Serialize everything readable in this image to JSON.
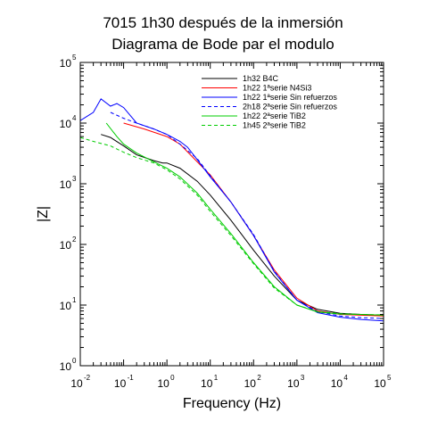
{
  "chart_data": {
    "type": "line",
    "title": [
      "7015 1h30 después de la inmersión",
      "Diagrama de Bode par el modulo"
    ],
    "xlabel": "Frequency (Hz)",
    "ylabel": "|Z|",
    "xscale": "log",
    "yscale": "log",
    "xlim": [
      0.01,
      100000
    ],
    "ylim": [
      1,
      100000
    ],
    "xticks": [
      {
        "base": "10",
        "exp": "-2"
      },
      {
        "base": "10",
        "exp": "-1"
      },
      {
        "base": "10",
        "exp": "0"
      },
      {
        "base": "10",
        "exp": "1"
      },
      {
        "base": "10",
        "exp": "2"
      },
      {
        "base": "10",
        "exp": "3"
      },
      {
        "base": "10",
        "exp": "4"
      },
      {
        "base": "10",
        "exp": "5"
      }
    ],
    "yticks": [
      {
        "base": "10",
        "exp": "0"
      },
      {
        "base": "10",
        "exp": "1"
      },
      {
        "base": "10",
        "exp": "2"
      },
      {
        "base": "10",
        "exp": "3"
      },
      {
        "base": "10",
        "exp": "4"
      },
      {
        "base": "10",
        "exp": "5"
      }
    ],
    "grid": false,
    "legend_position": "top-right",
    "series": [
      {
        "name": "1h32 B4C",
        "color": "#000000",
        "dash": "solid",
        "points": [
          [
            0.03,
            6500
          ],
          [
            0.05,
            5800
          ],
          [
            0.1,
            4200
          ],
          [
            0.2,
            3000
          ],
          [
            0.5,
            2400
          ],
          [
            0.8,
            2200
          ],
          [
            1,
            2200
          ],
          [
            2,
            1800
          ],
          [
            5,
            1100
          ],
          [
            10,
            650
          ],
          [
            30,
            250
          ],
          [
            100,
            80
          ],
          [
            300,
            30
          ],
          [
            1000,
            12
          ],
          [
            3000,
            8.5
          ],
          [
            10000,
            7.3
          ],
          [
            30000,
            7
          ],
          [
            100000,
            6.8
          ]
        ]
      },
      {
        "name": "1h22 1ªserie N4Si3",
        "color": "#ff0000",
        "dash": "solid",
        "points": [
          [
            0.1,
            10000
          ],
          [
            0.3,
            8000
          ],
          [
            1,
            6000
          ],
          [
            2,
            4500
          ],
          [
            5,
            2300
          ],
          [
            10,
            1400
          ],
          [
            30,
            500
          ],
          [
            100,
            140
          ],
          [
            300,
            38
          ],
          [
            1000,
            13
          ],
          [
            3000,
            8
          ],
          [
            10000,
            7
          ],
          [
            30000,
            6.8
          ],
          [
            100000,
            6.6
          ]
        ]
      },
      {
        "name": "1h22 1ªserie Sin refuerzos",
        "color": "#0000ff",
        "dash": "solid",
        "points": [
          [
            0.01,
            11000
          ],
          [
            0.02,
            15000
          ],
          [
            0.03,
            25000
          ],
          [
            0.05,
            19000
          ],
          [
            0.07,
            21000
          ],
          [
            0.1,
            18000
          ],
          [
            0.2,
            10000
          ],
          [
            0.5,
            8000
          ],
          [
            1,
            6500
          ],
          [
            2,
            5000
          ],
          [
            3,
            4000
          ],
          [
            5,
            2500
          ],
          [
            10,
            1300
          ],
          [
            30,
            500
          ],
          [
            100,
            140
          ],
          [
            300,
            35
          ],
          [
            1000,
            12
          ],
          [
            3000,
            7.5
          ],
          [
            10000,
            6.3
          ],
          [
            30000,
            5.8
          ],
          [
            100000,
            5.5
          ]
        ]
      },
      {
        "name": "2h18 2ªserie Sin refuerzos",
        "color": "#0000ff",
        "dash": "dashed",
        "points": [
          [
            0.05,
            15000
          ],
          [
            0.1,
            12000
          ],
          [
            0.2,
            10000
          ],
          [
            0.5,
            8000
          ],
          [
            1,
            6500
          ],
          [
            2,
            4500
          ],
          [
            5,
            2600
          ],
          [
            10,
            1350
          ],
          [
            30,
            500
          ],
          [
            100,
            145
          ],
          [
            300,
            36
          ],
          [
            1000,
            12
          ],
          [
            3000,
            7.8
          ],
          [
            10000,
            6.6
          ],
          [
            30000,
            6.2
          ],
          [
            100000,
            6
          ]
        ]
      },
      {
        "name": "1h22 2ªserie TiB2",
        "color": "#00cc00",
        "dash": "solid",
        "points": [
          [
            0.04,
            10000
          ],
          [
            0.07,
            6000
          ],
          [
            0.1,
            4500
          ],
          [
            0.2,
            3200
          ],
          [
            0.5,
            2300
          ],
          [
            1,
            1800
          ],
          [
            2,
            1300
          ],
          [
            5,
            700
          ],
          [
            10,
            380
          ],
          [
            30,
            150
          ],
          [
            100,
            50
          ],
          [
            300,
            20
          ],
          [
            1000,
            10
          ],
          [
            3000,
            7.7
          ],
          [
            10000,
            7.1
          ],
          [
            30000,
            7
          ],
          [
            100000,
            6.8
          ]
        ]
      },
      {
        "name": "1h45 2ªserie TiB2",
        "color": "#00cc00",
        "dash": "dashed",
        "points": [
          [
            0.01,
            5800
          ],
          [
            0.02,
            5000
          ],
          [
            0.05,
            4200
          ],
          [
            0.1,
            3300
          ],
          [
            0.2,
            2700
          ],
          [
            0.5,
            2200
          ],
          [
            1,
            1700
          ],
          [
            2,
            1200
          ],
          [
            5,
            650
          ],
          [
            10,
            350
          ],
          [
            30,
            140
          ],
          [
            100,
            48
          ],
          [
            300,
            19
          ],
          [
            1000,
            10
          ],
          [
            3000,
            7.8
          ],
          [
            10000,
            7.2
          ],
          [
            30000,
            7
          ],
          [
            100000,
            6.9
          ]
        ]
      }
    ]
  }
}
